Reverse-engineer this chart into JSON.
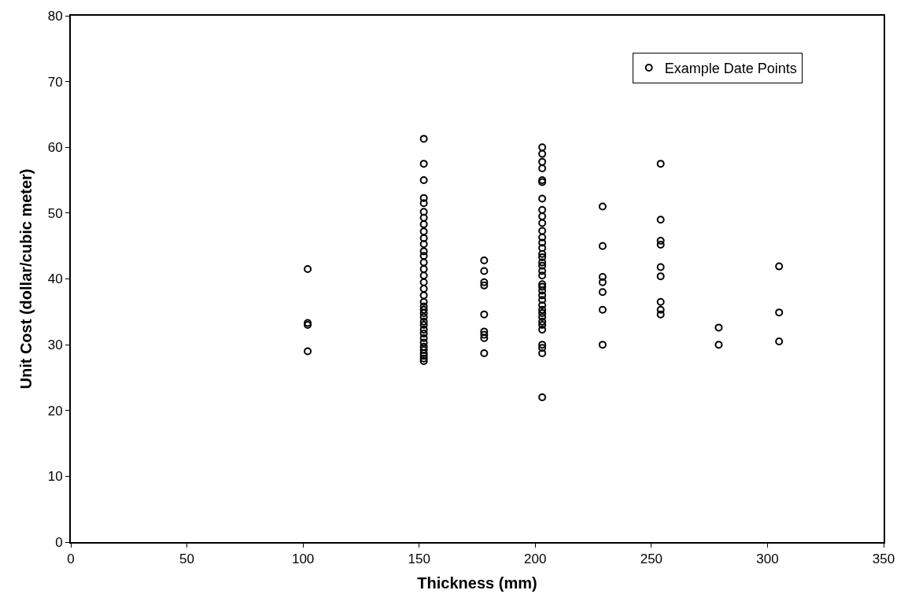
{
  "chart_data": {
    "type": "scatter",
    "xlabel": "Thickness (mm)",
    "ylabel": "Unit Cost (dollar/cubic meter)",
    "xlim": [
      0,
      350
    ],
    "xticks": [
      0,
      50,
      100,
      150,
      200,
      250,
      300,
      350
    ],
    "ylim": [
      0,
      80
    ],
    "yticks": [
      0,
      10,
      20,
      30,
      40,
      50,
      60,
      70,
      80
    ],
    "legend": "top right",
    "marker": "circle",
    "series": [
      {
        "name": "Example Date Points",
        "color": "#000000",
        "x": [
          102,
          102,
          102,
          102,
          152,
          152,
          152,
          152,
          152,
          152,
          152,
          152,
          152,
          152,
          152,
          152,
          152,
          152,
          152,
          152,
          152,
          152,
          152,
          152,
          152,
          152,
          152,
          152,
          152,
          152,
          152,
          152,
          152,
          152,
          152,
          152,
          152,
          152,
          152,
          152,
          178,
          178,
          178,
          178,
          178,
          178,
          178,
          178,
          178,
          203,
          203,
          203,
          203,
          203,
          203,
          203,
          203,
          203,
          203,
          203,
          203,
          203,
          203,
          203,
          203,
          203,
          203,
          203,
          203,
          203,
          203,
          203,
          203,
          203,
          203,
          203,
          203,
          203,
          203,
          203,
          203,
          203,
          203,
          203,
          203,
          229,
          229,
          229,
          229,
          229,
          229,
          229,
          254,
          254,
          254,
          254,
          254,
          254,
          254,
          254,
          254,
          279,
          279,
          305,
          305,
          305
        ],
        "values": [
          41.5,
          33.3,
          33.0,
          29,
          61.3,
          57.5,
          55,
          52.3,
          51.5,
          50.2,
          49.3,
          48.3,
          47.2,
          46.2,
          45.3,
          44.2,
          43.5,
          42.5,
          41.5,
          40.5,
          39.5,
          38.5,
          37.5,
          36.5,
          35.8,
          35.3,
          34.8,
          34.2,
          33.5,
          33,
          32.3,
          31.7,
          31,
          30.3,
          29.7,
          29.2,
          28.7,
          28.3,
          27.9,
          27.5,
          42.8,
          41.2,
          39.5,
          39,
          34.6,
          32,
          31.5,
          31,
          28.7,
          60,
          59,
          57.8,
          56.8,
          55,
          54.7,
          52.2,
          50.5,
          49.5,
          48.5,
          47.3,
          46.3,
          45.5,
          44.7,
          43.8,
          43.3,
          42.5,
          42,
          41.2,
          40.5,
          39.2,
          38.8,
          38.2,
          37.5,
          36.8,
          36,
          35.3,
          34.8,
          34.2,
          33.5,
          33,
          32.3,
          30,
          29.5,
          28.7,
          22,
          51,
          45,
          40.3,
          39.5,
          38,
          35.3,
          30,
          57.5,
          49,
          45.8,
          45.2,
          41.8,
          40.4,
          36.5,
          35.3,
          34.6,
          32.6,
          30,
          41.9,
          34.9,
          30.5
        ]
      }
    ]
  }
}
